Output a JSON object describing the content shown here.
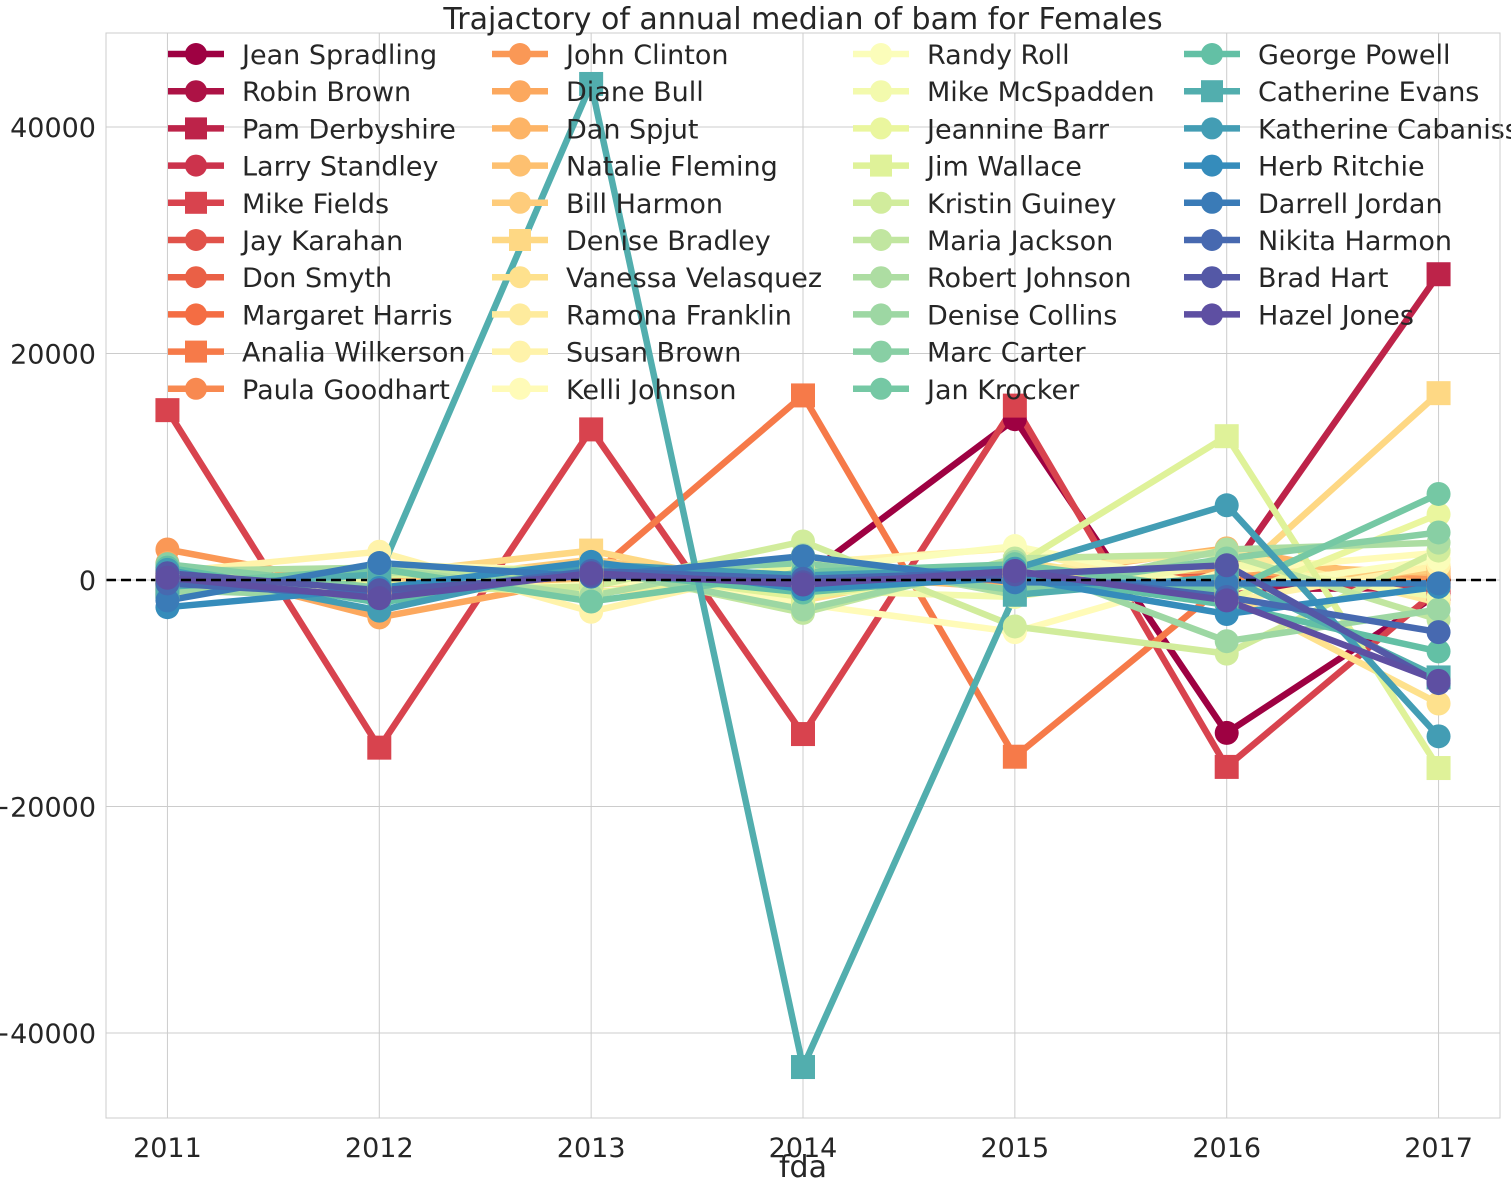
{
  "chart_data": {
    "type": "line",
    "title": "Trajactory of annual median of bam for Females",
    "xlabel": "fda",
    "ylabel": "",
    "x": [
      2011,
      2012,
      2013,
      2014,
      2015,
      2016,
      2017
    ],
    "x_tick_labels": [
      "2011",
      "2012",
      "2013",
      "2014",
      "2015",
      "2016",
      "2017"
    ],
    "y_ticks": [
      -40000,
      -20000,
      0,
      20000,
      40000
    ],
    "y_tick_labels": [
      "−40000",
      "−20000",
      "0",
      "20000",
      "40000"
    ],
    "xlim": [
      2010.71,
      2017.29
    ],
    "ylim": [
      -47500,
      48300
    ],
    "grid": true,
    "reference_line": {
      "y": 0,
      "style": "dashed",
      "color": "#000000"
    },
    "legend": {
      "placement": "top",
      "columns": 4
    },
    "series": [
      {
        "name": "Jean Spradling",
        "color": "#9e0142",
        "marker": "circle",
        "values": [
          -300,
          -500,
          300,
          200,
          14200,
          -13500,
          -1200
        ]
      },
      {
        "name": "Robin Brown",
        "color": "#ad1245",
        "marker": "circle",
        "values": [
          200,
          100,
          -200,
          -400,
          300,
          -800,
          -700
        ]
      },
      {
        "name": "Pam Derbyshire",
        "color": "#bd2349",
        "marker": "square",
        "values": [
          -500,
          -300,
          600,
          300,
          700,
          300,
          27000
        ]
      },
      {
        "name": "Larry Standley",
        "color": "#cc334c",
        "marker": "circle",
        "values": [
          300,
          -600,
          200,
          -300,
          400,
          200,
          -1000
        ]
      },
      {
        "name": "Mike Fields",
        "color": "#d8434e",
        "marker": "square",
        "values": [
          15000,
          -14800,
          13300,
          -13600,
          15400,
          -16500,
          -800
        ]
      },
      {
        "name": "Jay Karahan",
        "color": "#e1524a",
        "marker": "circle",
        "values": [
          -200,
          300,
          -100,
          400,
          -300,
          200,
          -300
        ]
      },
      {
        "name": "Don Smyth",
        "color": "#ea6046",
        "marker": "circle",
        "values": [
          400,
          -200,
          300,
          -100,
          200,
          -400,
          100
        ]
      },
      {
        "name": "Margaret Harris",
        "color": "#f46d43",
        "marker": "circle",
        "values": [
          -100,
          400,
          -300,
          200,
          -200,
          300,
          -200
        ]
      },
      {
        "name": "Analia Wilkerson",
        "color": "#f67a49",
        "marker": "square",
        "values": [
          500,
          -200,
          300,
          16300,
          -15600,
          -300,
          200
        ]
      },
      {
        "name": "Paula Goodhart",
        "color": "#f88950",
        "marker": "circle",
        "values": [
          -400,
          200,
          -200,
          300,
          100,
          -100,
          300
        ]
      },
      {
        "name": "John Clinton",
        "color": "#fa9856",
        "marker": "circle",
        "values": [
          2700,
          -800,
          400,
          -500,
          600,
          -300,
          400
        ]
      },
      {
        "name": "Diane Bull",
        "color": "#fca85e",
        "marker": "circle",
        "values": [
          1500,
          -3300,
          200,
          -300,
          400,
          900,
          -400
        ]
      },
      {
        "name": "Dan Spjut",
        "color": "#fdb466",
        "marker": "circle",
        "values": [
          800,
          -500,
          1200,
          -800,
          300,
          2800,
          -600
        ]
      },
      {
        "name": "Natalie Fleming",
        "color": "#fdc070",
        "marker": "circle",
        "values": [
          -800,
          600,
          -400,
          500,
          -700,
          1400,
          600
        ]
      },
      {
        "name": "Bill Harmon",
        "color": "#fecc7b",
        "marker": "circle",
        "values": [
          600,
          -400,
          1800,
          -600,
          1000,
          -500,
          900
        ]
      },
      {
        "name": "Denise Bradley",
        "color": "#fed884",
        "marker": "square",
        "values": [
          -300,
          500,
          2600,
          -1300,
          500,
          -400,
          16500
        ]
      },
      {
        "name": "Vanessa Velasquez",
        "color": "#fee18d",
        "marker": "circle",
        "values": [
          1000,
          -700,
          800,
          -1800,
          1700,
          -1200,
          -10900
        ]
      },
      {
        "name": "Ramona Franklin",
        "color": "#feeb9d",
        "marker": "circle",
        "values": [
          -1500,
          800,
          -1000,
          -600,
          700,
          2600,
          -2000
        ]
      },
      {
        "name": "Susan Brown",
        "color": "#fff3aa",
        "marker": "circle",
        "values": [
          700,
          2500,
          -2800,
          1500,
          2800,
          -1900,
          1300
        ]
      },
      {
        "name": "Kelli Johnson",
        "color": "#fffbb8",
        "marker": "circle",
        "values": [
          -1000,
          1400,
          800,
          -2100,
          -4600,
          800,
          2400
        ]
      },
      {
        "name": "Randy Roll",
        "color": "#fbfdba",
        "marker": "circle",
        "values": [
          400,
          -1200,
          -400,
          900,
          3000,
          -800,
          1800
        ]
      },
      {
        "name": "Mike McSpadden",
        "color": "#f3faad",
        "marker": "circle",
        "values": [
          -700,
          900,
          600,
          -900,
          -1500,
          1500,
          -1500
        ]
      },
      {
        "name": "Jeannine Barr",
        "color": "#eaf69e",
        "marker": "circle",
        "values": [
          900,
          -300,
          -1200,
          1200,
          800,
          -1800,
          5800
        ]
      },
      {
        "name": "Jim Wallace",
        "color": "#dff299",
        "marker": "square",
        "values": [
          -600,
          400,
          900,
          -1500,
          1200,
          12700,
          -16600
        ]
      },
      {
        "name": "Kristin Guiney",
        "color": "#d1ec9c",
        "marker": "circle",
        "values": [
          1200,
          -900,
          -600,
          3400,
          -4100,
          -6500,
          2600
        ]
      },
      {
        "name": "Maria Jackson",
        "color": "#c1e6a0",
        "marker": "circle",
        "values": [
          -1300,
          600,
          1100,
          -2900,
          1900,
          2300,
          -3500
        ]
      },
      {
        "name": "Robert Johnson",
        "color": "#addda2",
        "marker": "circle",
        "values": [
          800,
          1100,
          -1400,
          2200,
          -1300,
          2700,
          3300
        ]
      },
      {
        "name": "Denise Collins",
        "color": "#9dd7a3",
        "marker": "circle",
        "values": [
          -900,
          -1500,
          1000,
          -2600,
          1600,
          -5400,
          -2600
        ]
      },
      {
        "name": "Marc Carter",
        "color": "#88cfa4",
        "marker": "circle",
        "values": [
          1400,
          -700,
          600,
          1500,
          -900,
          1900,
          4200
        ]
      },
      {
        "name": "Jan Krocker",
        "color": "#75c8a4",
        "marker": "circle",
        "values": [
          -400,
          1000,
          -1900,
          700,
          1400,
          -1000,
          7600
        ]
      },
      {
        "name": "George Powell",
        "color": "#63c0a5",
        "marker": "circle",
        "values": [
          1100,
          -2000,
          800,
          -1100,
          500,
          -2200,
          -6300
        ]
      },
      {
        "name": "Catherine Evans",
        "color": "#52aeae",
        "marker": "square",
        "values": [
          -600,
          500,
          43800,
          -43000,
          -1300,
          300,
          -8600
        ]
      },
      {
        "name": "Katherine Cabaniss",
        "color": "#439db4",
        "marker": "circle",
        "values": [
          900,
          -2700,
          1400,
          400,
          1000,
          6600,
          -13800
        ]
      },
      {
        "name": "Herb Ritchie",
        "color": "#358cbb",
        "marker": "circle",
        "values": [
          -2400,
          -700,
          1600,
          -800,
          200,
          -3000,
          -600
        ]
      },
      {
        "name": "Darrell Jordan",
        "color": "#3a7bb7",
        "marker": "circle",
        "values": [
          -1800,
          1500,
          300,
          2100,
          -200,
          -300,
          -300
        ]
      },
      {
        "name": "Nikita Harmon",
        "color": "#4769b0",
        "marker": "circle",
        "values": [
          -300,
          -1400,
          800,
          100,
          700,
          -1500,
          -4600
        ]
      },
      {
        "name": "Brad Hart",
        "color": "#5458a6",
        "marker": "circle",
        "values": [
          600,
          -900,
          400,
          -200,
          500,
          1300,
          -9100
        ]
      },
      {
        "name": "Hazel Jones",
        "color": "#5e4fa2",
        "marker": "circle",
        "values": [
          200,
          -1600,
          600,
          -400,
          800,
          -1800,
          -8900
        ]
      }
    ]
  }
}
